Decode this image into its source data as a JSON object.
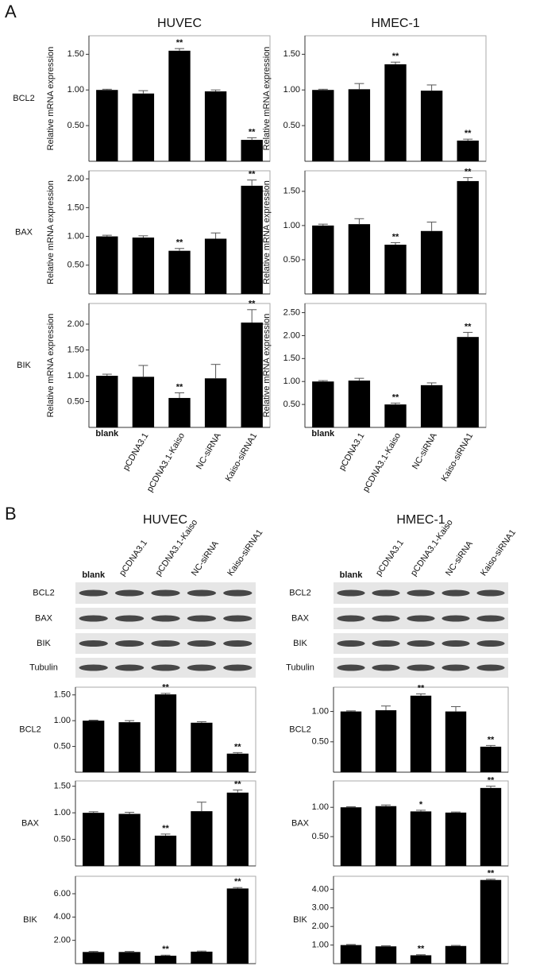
{
  "panel_a": {
    "label": "A",
    "titles": [
      "HUVEC",
      "HMEC-1"
    ]
  },
  "panel_b": {
    "label": "B",
    "titles": [
      "HUVEC",
      "HMEC-1"
    ],
    "blots": [
      {
        "lanes": [
          "blank",
          "pCDNA3.1",
          "pCDNA3.1-Kaiso",
          "NC-siRNA",
          "Kaiso-siRNA1"
        ],
        "rows": [
          "BCL2",
          "BAX",
          "BIK",
          "Tubulin"
        ]
      },
      {
        "lanes": [
          "blank",
          "pCDNA3.1",
          "pCDNA3.1-Kaiso",
          "NC-siRNA",
          "Kaiso-siRNA1"
        ],
        "rows": [
          "BCL2",
          "BAX",
          "BIK",
          "Tubulin"
        ]
      }
    ]
  },
  "chart_data": [
    {
      "type": "bar",
      "row_label": "BCL2",
      "ylabel": "Relative mRNA expression",
      "color": "#000000",
      "values": [
        1.0,
        0.95,
        1.55,
        0.98,
        0.3
      ],
      "errors": [
        0.01,
        0.04,
        0.03,
        0.02,
        0.03
      ],
      "annotations": [
        null,
        null,
        "**",
        null,
        "**"
      ],
      "ylim": [
        0,
        1.76
      ],
      "yticks": [
        {
          "value": 0.5,
          "label": "0.50"
        },
        {
          "value": 1,
          "label": "1.00"
        },
        {
          "value": 1.5,
          "label": "1.50"
        }
      ]
    },
    {
      "type": "bar",
      "ylabel": "Relative mRNA expression",
      "color": "#000000",
      "values": [
        1.0,
        1.01,
        1.36,
        0.99,
        0.29
      ],
      "errors": [
        0.01,
        0.08,
        0.03,
        0.08,
        0.02
      ],
      "annotations": [
        null,
        null,
        "**",
        null,
        "**"
      ],
      "ylim": [
        0,
        1.76
      ],
      "yticks": [
        {
          "value": 0.5,
          "label": "0.50"
        },
        {
          "value": 1,
          "label": "1.00"
        },
        {
          "value": 1.5,
          "label": "1.50"
        }
      ]
    },
    {
      "type": "bar",
      "row_label": "BAX",
      "ylabel": "Relative mRNA expression",
      "color": "#000000",
      "values": [
        1.0,
        0.98,
        0.75,
        0.96,
        1.88
      ],
      "errors": [
        0.02,
        0.03,
        0.04,
        0.1,
        0.1
      ],
      "annotations": [
        null,
        null,
        "**",
        null,
        "**"
      ],
      "ylim": [
        0,
        2.14
      ],
      "yticks": [
        {
          "value": 0.5,
          "label": "0.50"
        },
        {
          "value": 1,
          "label": "1.00"
        },
        {
          "value": 1.5,
          "label": "1.50"
        },
        {
          "value": 2,
          "label": "2.00"
        }
      ]
    },
    {
      "type": "bar",
      "ylabel": "Relative mRNA expression",
      "color": "#000000",
      "values": [
        1.0,
        1.02,
        0.72,
        0.92,
        1.65
      ],
      "errors": [
        0.02,
        0.08,
        0.03,
        0.13,
        0.05
      ],
      "annotations": [
        null,
        null,
        "**",
        null,
        "**"
      ],
      "ylim": [
        0,
        1.8
      ],
      "yticks": [
        {
          "value": 0.5,
          "label": "0.50"
        },
        {
          "value": 1,
          "label": "1.00"
        },
        {
          "value": 1.5,
          "label": "1.50"
        }
      ]
    },
    {
      "type": "bar",
      "row_label": "BIK",
      "ylabel": "Relative mRNA expression",
      "color": "#000000",
      "categories": [
        "blank",
        "pCDNA3.1",
        "pCDNA3.1-Kaiso",
        "NC-siRNA",
        "Kaiso-siRNA1"
      ],
      "values": [
        1.0,
        0.98,
        0.57,
        0.95,
        2.03
      ],
      "errors": [
        0.03,
        0.22,
        0.1,
        0.27,
        0.25
      ],
      "annotations": [
        null,
        null,
        "**",
        null,
        "**"
      ],
      "ylim": [
        0,
        2.4
      ],
      "yticks": [
        {
          "value": 0.5,
          "label": "0.50"
        },
        {
          "value": 1,
          "label": "1.00"
        },
        {
          "value": 1.5,
          "label": "1.50"
        },
        {
          "value": 2,
          "label": "2.00"
        }
      ]
    },
    {
      "type": "bar",
      "ylabel": "Relative mRNA expression",
      "color": "#000000",
      "categories": [
        "blank",
        "pCDNA3.1",
        "pCDNA3.1-Kaiso",
        "NC-siRNA",
        "Kaiso-siRNA1"
      ],
      "values": [
        1.0,
        1.02,
        0.5,
        0.92,
        1.97
      ],
      "errors": [
        0.02,
        0.05,
        0.03,
        0.05,
        0.1
      ],
      "annotations": [
        null,
        null,
        "**",
        null,
        "**"
      ],
      "ylim": [
        0,
        2.7
      ],
      "yticks": [
        {
          "value": 0.5,
          "label": "0.50"
        },
        {
          "value": 1,
          "label": "1.00"
        },
        {
          "value": 1.5,
          "label": "1.50"
        },
        {
          "value": 2,
          "label": "2.00"
        },
        {
          "value": 2.5,
          "label": "2.50"
        }
      ]
    },
    {
      "type": "bar",
      "row_label": "BCL2",
      "color": "#000000",
      "values": [
        1.0,
        0.97,
        1.51,
        0.96,
        0.36
      ],
      "errors": [
        0.01,
        0.03,
        0.02,
        0.02,
        0.02
      ],
      "annotations": [
        null,
        null,
        "**",
        null,
        "**"
      ],
      "ylim": [
        0,
        1.65
      ],
      "yticks": [
        {
          "value": 0.5,
          "label": "0.50"
        },
        {
          "value": 1,
          "label": "1.00"
        },
        {
          "value": 1.5,
          "label": "1.50"
        }
      ]
    },
    {
      "type": "bar",
      "row_label": "BCL2",
      "color": "#000000",
      "values": [
        1.0,
        1.02,
        1.26,
        1.0,
        0.42
      ],
      "errors": [
        0.01,
        0.07,
        0.03,
        0.08,
        0.02
      ],
      "annotations": [
        null,
        null,
        "**",
        null,
        "**"
      ],
      "ylim": [
        0,
        1.4
      ],
      "yticks": [
        {
          "value": 0.5,
          "label": "0.50"
        },
        {
          "value": 1,
          "label": "1.00"
        }
      ]
    },
    {
      "type": "bar",
      "row_label": "BAX",
      "color": "#000000",
      "values": [
        1.0,
        0.98,
        0.57,
        1.03,
        1.38
      ],
      "errors": [
        0.02,
        0.03,
        0.03,
        0.17,
        0.05
      ],
      "annotations": [
        null,
        null,
        "**",
        null,
        "**"
      ],
      "ylim": [
        0,
        1.6
      ],
      "yticks": [
        {
          "value": 0.5,
          "label": "0.50"
        },
        {
          "value": 1,
          "label": "1.00"
        },
        {
          "value": 1.5,
          "label": "1.50"
        }
      ]
    },
    {
      "type": "bar",
      "row_label": "BAX",
      "color": "#000000",
      "values": [
        1.0,
        1.02,
        0.93,
        0.91,
        1.33
      ],
      "errors": [
        0.01,
        0.02,
        0.02,
        0.01,
        0.03
      ],
      "annotations": [
        null,
        null,
        "*",
        null,
        "**"
      ],
      "ylim": [
        0,
        1.45
      ],
      "yticks": [
        {
          "value": 0.5,
          "label": "0.50"
        },
        {
          "value": 1,
          "label": "1.00"
        }
      ]
    },
    {
      "type": "bar",
      "row_label": "BIK",
      "color": "#000000",
      "values": [
        1.0,
        1.0,
        0.68,
        1.03,
        6.45
      ],
      "errors": [
        0.05,
        0.05,
        0.05,
        0.05,
        0.08
      ],
      "annotations": [
        null,
        null,
        "**",
        null,
        "**"
      ],
      "ylim": [
        0,
        7.5
      ],
      "yticks": [
        {
          "value": 2,
          "label": "2.00"
        },
        {
          "value": 4,
          "label": "4.00"
        },
        {
          "value": 6,
          "label": "6.00"
        }
      ]
    },
    {
      "type": "bar",
      "row_label": "BIK",
      "color": "#000000",
      "values": [
        1.0,
        0.93,
        0.45,
        0.95,
        4.5
      ],
      "errors": [
        0.03,
        0.03,
        0.03,
        0.03,
        0.04
      ],
      "annotations": [
        null,
        null,
        "**",
        null,
        "**"
      ],
      "ylim": [
        0,
        4.7
      ],
      "yticks": [
        {
          "value": 1,
          "label": "1.00"
        },
        {
          "value": 2,
          "label": "2.00"
        },
        {
          "value": 3,
          "label": "3.00"
        },
        {
          "value": 4,
          "label": "4.00"
        }
      ]
    }
  ]
}
